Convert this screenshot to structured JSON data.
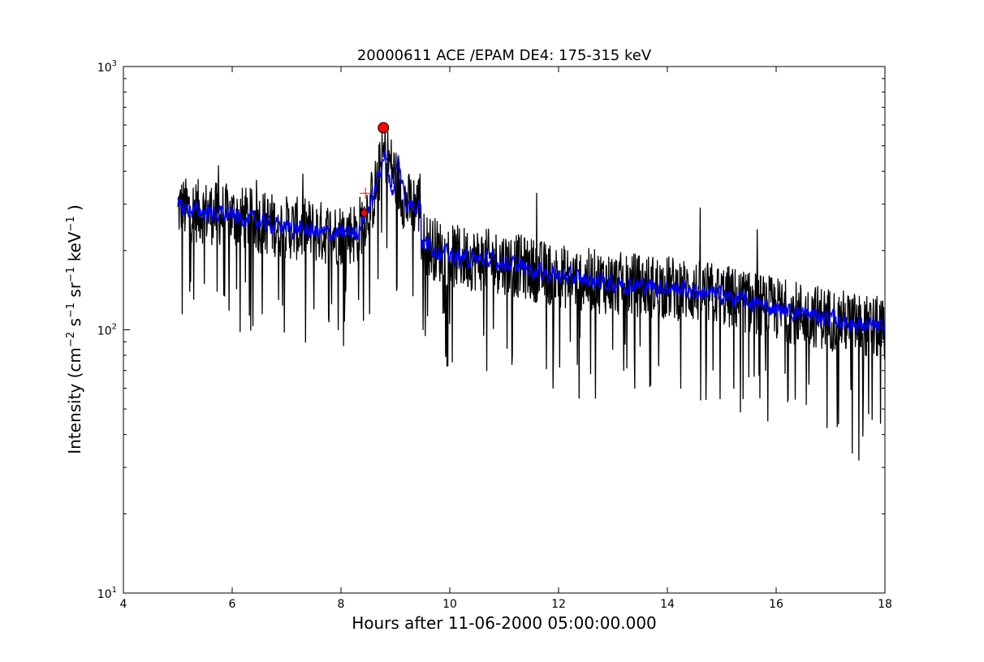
{
  "chart_data": {
    "type": "line",
    "title": "20000611 ACE /EPAM DE4: 175-315 keV",
    "xlabel": "Hours after 11-06-2000 05:00:00.000",
    "ylabel": {
      "prefix": "Intensity (cm",
      "cm_exp": "−2",
      "s_label": " s",
      "s_exp": "−1",
      "sr_label": " sr",
      "sr_exp": "−1",
      "kev_label": " keV",
      "kev_exp": "−1",
      "suffix": " )"
    },
    "xlim": [
      4,
      18
    ],
    "ylim": [
      10,
      1000
    ],
    "yscale": "log",
    "grid": false,
    "xticks": [
      4,
      6,
      8,
      10,
      12,
      14,
      16,
      18
    ],
    "xtick_labels": [
      "4",
      "6",
      "8",
      "10",
      "12",
      "14",
      "16",
      "18"
    ],
    "yticks": [
      {
        "base": "10",
        "exp": "1",
        "value": 10
      },
      {
        "base": "10",
        "exp": "2",
        "value": 100
      },
      {
        "base": "10",
        "exp": "3",
        "value": 1000
      }
    ],
    "series": [
      {
        "color": "#000000",
        "x_start": 5.0,
        "x_end": 18.0,
        "baseline": [
          [
            5.0,
            290
          ],
          [
            6.0,
            270
          ],
          [
            7.0,
            245
          ],
          [
            7.9,
            230
          ],
          [
            8.3,
            235
          ],
          [
            8.6,
            320
          ],
          [
            8.8,
            480
          ],
          [
            9.0,
            380
          ],
          [
            9.2,
            300
          ],
          [
            9.45,
            300
          ],
          [
            9.5,
            215
          ],
          [
            10.0,
            190
          ],
          [
            11.0,
            180
          ],
          [
            12.0,
            160
          ],
          [
            13.0,
            150
          ],
          [
            14.0,
            145
          ],
          [
            15.0,
            135
          ],
          [
            16.0,
            120
          ],
          [
            17.0,
            110
          ],
          [
            18.0,
            100
          ]
        ],
        "spikes": [
          [
            5.08,
            115
          ],
          [
            5.22,
            140
          ],
          [
            5.72,
            140
          ],
          [
            6.55,
            115
          ],
          [
            6.85,
            130
          ],
          [
            7.5,
            120
          ],
          [
            7.95,
            100
          ],
          [
            8.05,
            87
          ],
          [
            8.32,
            130
          ],
          [
            9.55,
            95
          ],
          [
            10.68,
            70
          ],
          [
            11.05,
            85
          ],
          [
            12.38,
            55
          ],
          [
            12.68,
            55
          ],
          [
            13.4,
            60
          ],
          [
            14.72,
            75
          ],
          [
            15.22,
            60
          ],
          [
            15.85,
            45
          ],
          [
            16.22,
            55
          ],
          [
            16.55,
            52
          ],
          [
            17.15,
            44
          ],
          [
            17.4,
            34
          ],
          [
            17.52,
            32
          ],
          [
            17.7,
            48
          ],
          [
            5.75,
            420
          ],
          [
            6.45,
            370
          ],
          [
            7.3,
            390
          ],
          [
            8.75,
            560
          ],
          [
            9.45,
            390
          ],
          [
            11.6,
            330
          ],
          [
            14.6,
            290
          ],
          [
            15.65,
            240
          ]
        ],
        "noise": 0.28
      },
      {
        "color": "#0000ff",
        "x_start": 5.0,
        "x_end": 18.0,
        "baseline": [
          [
            5.0,
            290
          ],
          [
            6.0,
            270
          ],
          [
            7.0,
            245
          ],
          [
            7.9,
            230
          ],
          [
            8.3,
            235
          ],
          [
            8.6,
            320
          ],
          [
            8.8,
            470
          ],
          [
            8.95,
            330
          ],
          [
            9.05,
            440
          ],
          [
            9.2,
            300
          ],
          [
            9.45,
            300
          ],
          [
            9.5,
            215
          ],
          [
            10.0,
            190
          ],
          [
            11.0,
            180
          ],
          [
            12.0,
            160
          ],
          [
            13.0,
            150
          ],
          [
            14.0,
            145
          ],
          [
            15.0,
            135
          ],
          [
            16.0,
            120
          ],
          [
            17.0,
            110
          ],
          [
            18.0,
            100
          ]
        ],
        "noise": 0.13
      }
    ],
    "markers": [
      {
        "shape": "circle",
        "x": 8.78,
        "y": 585,
        "color": "#ff0000"
      },
      {
        "shape": "diamond",
        "x": 8.43,
        "y": 278,
        "color": "#ff0000"
      },
      {
        "shape": "plus",
        "x": 8.45,
        "y": 330,
        "color": "#ff0000"
      }
    ]
  }
}
